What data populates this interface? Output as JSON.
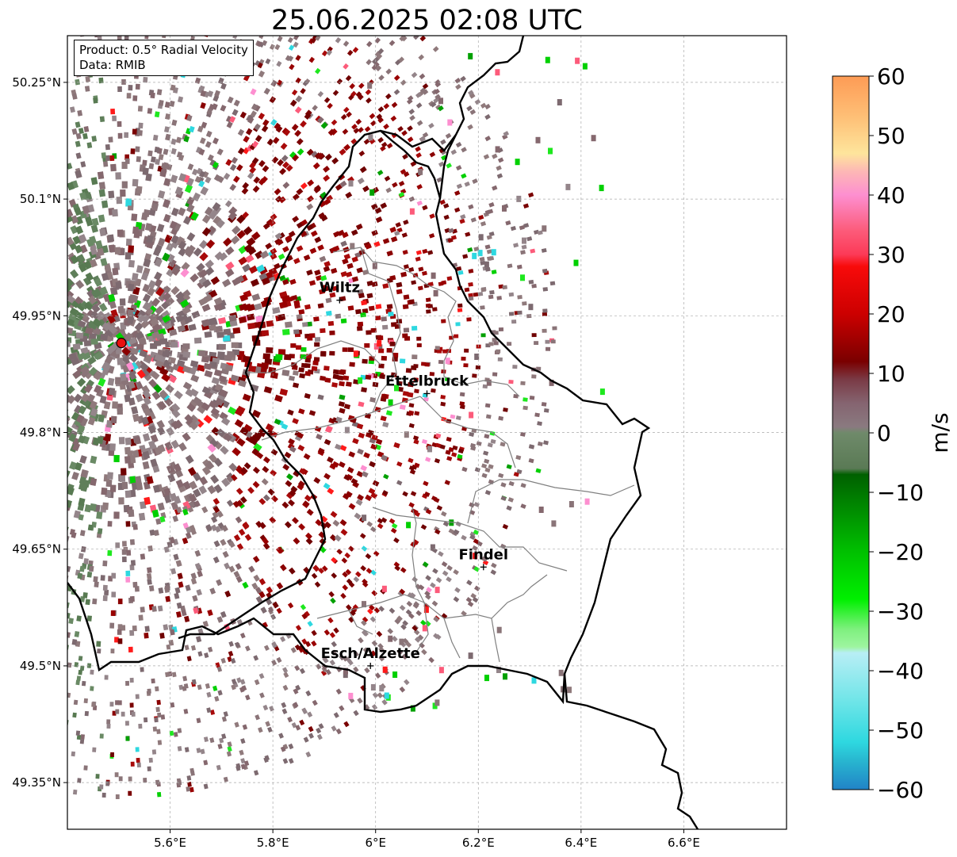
{
  "title": "25.06.2025 02:08 UTC",
  "info_box": {
    "product": "Product: 0.5° Radial Velocity",
    "data": "Data: RMIB"
  },
  "map": {
    "lon_range": [
      5.4,
      6.8
    ],
    "lat_range": [
      49.29,
      50.31
    ],
    "lon_ticks": [
      {
        "value": 5.6,
        "label": "5.6°E"
      },
      {
        "value": 5.8,
        "label": "5.8°E"
      },
      {
        "value": 6.0,
        "label": "6°E"
      },
      {
        "value": 6.2,
        "label": "6.2°E"
      },
      {
        "value": 6.4,
        "label": "6.4°E"
      },
      {
        "value": 6.6,
        "label": "6.6°E"
      }
    ],
    "lat_ticks": [
      {
        "value": 50.25,
        "label": "50.25°N"
      },
      {
        "value": 50.1,
        "label": "50.1°N"
      },
      {
        "value": 49.95,
        "label": "49.95°N"
      },
      {
        "value": 49.8,
        "label": "49.8°N"
      },
      {
        "value": 49.65,
        "label": "49.65°N"
      },
      {
        "value": 49.5,
        "label": "49.5°N"
      },
      {
        "value": 49.35,
        "label": "49.35°N"
      }
    ],
    "radar_site": {
      "lon": 5.505,
      "lat": 49.915,
      "color": "#e8110f"
    },
    "cities": [
      {
        "name": "Wiltz",
        "lon": 5.93,
        "lat": 49.97
      },
      {
        "name": "Ettelbruck",
        "lon": 6.1,
        "lat": 49.85
      },
      {
        "name": "Findel",
        "lon": 6.21,
        "lat": 49.627
      },
      {
        "name": "Esch/Alzette",
        "lon": 5.99,
        "lat": 49.5
      }
    ],
    "grid": true
  },
  "colorbar": {
    "label": "m/s",
    "min": -60,
    "max": 60,
    "ticks": [
      {
        "value": 60,
        "label": "60"
      },
      {
        "value": 50,
        "label": "50"
      },
      {
        "value": 40,
        "label": "40"
      },
      {
        "value": 30,
        "label": "30"
      },
      {
        "value": 20,
        "label": "20"
      },
      {
        "value": 10,
        "label": "10"
      },
      {
        "value": 0,
        "label": "0"
      },
      {
        "value": -10,
        "label": "−10"
      },
      {
        "value": -20,
        "label": "−20"
      },
      {
        "value": -30,
        "label": "−30"
      },
      {
        "value": -40,
        "label": "−40"
      },
      {
        "value": -50,
        "label": "−50"
      },
      {
        "value": -60,
        "label": "−60"
      }
    ],
    "stops": [
      {
        "v": 60,
        "c": "#fd9b55"
      },
      {
        "v": 53,
        "c": "#fec077"
      },
      {
        "v": 47,
        "c": "#fee59c"
      },
      {
        "v": 44,
        "c": "#fdb8b5"
      },
      {
        "v": 40,
        "c": "#fd8fd0"
      },
      {
        "v": 34,
        "c": "#fc5b7a"
      },
      {
        "v": 30,
        "c": "#fc3a57"
      },
      {
        "v": 28,
        "c": "#f80a0a"
      },
      {
        "v": 20,
        "c": "#cc0000"
      },
      {
        "v": 12,
        "c": "#7a0000"
      },
      {
        "v": 9,
        "c": "#7a3a45"
      },
      {
        "v": 5,
        "c": "#856470"
      },
      {
        "v": 1,
        "c": "#8a7a80"
      },
      {
        "v": 0,
        "c": "#6f8a6a"
      },
      {
        "v": -6,
        "c": "#5a7a55"
      },
      {
        "v": -7,
        "c": "#006000"
      },
      {
        "v": -20,
        "c": "#00c000"
      },
      {
        "v": -28,
        "c": "#00f000"
      },
      {
        "v": -33,
        "c": "#7ef07e"
      },
      {
        "v": -36,
        "c": "#9ef5a0"
      },
      {
        "v": -37,
        "c": "#b8eef5"
      },
      {
        "v": -45,
        "c": "#70e5e8"
      },
      {
        "v": -52,
        "c": "#2ed8e0"
      },
      {
        "v": -55,
        "c": "#28b8d0"
      },
      {
        "v": -60,
        "c": "#2183c7"
      }
    ]
  }
}
